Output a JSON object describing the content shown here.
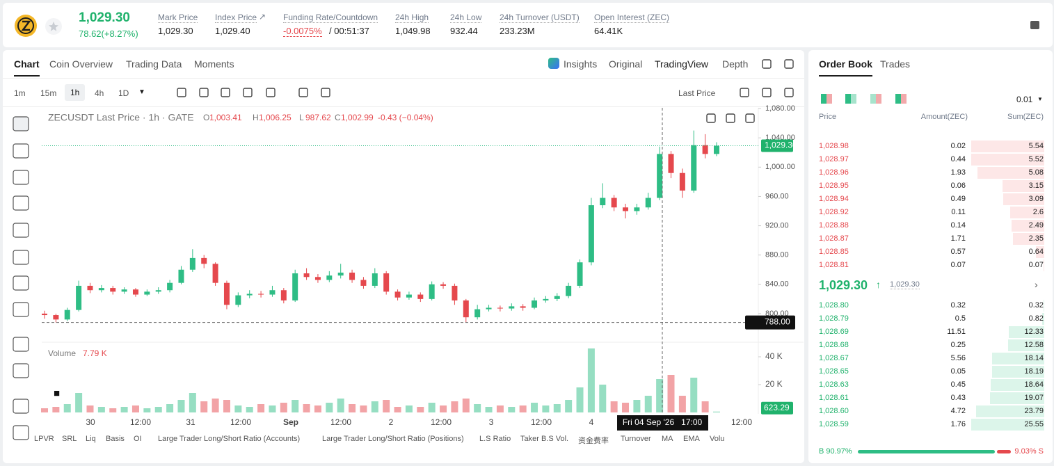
{
  "header": {
    "price": "1,029.30",
    "change": "78.62(+8.27%)",
    "stats": [
      {
        "label": "Mark Price",
        "value": "1,029.30"
      },
      {
        "label": "Index Price",
        "value": "1,029.40"
      },
      {
        "label": "Funding Rate/Countdown",
        "value": "-0.0075%",
        "extra": "/ 00:51:37"
      },
      {
        "label": "24h High",
        "value": "1,049.98"
      },
      {
        "label": "24h Low",
        "value": "932.44"
      },
      {
        "label": "24h Turnover (USDT)",
        "value": "233.23M"
      },
      {
        "label": "Open Interest (ZEC)",
        "value": "64.41K"
      }
    ]
  },
  "chart_tabs": [
    "Chart",
    "Coin Overview",
    "Trading Data",
    "Moments"
  ],
  "view_tabs": [
    "Insights",
    "Original",
    "TradingView",
    "Depth"
  ],
  "intervals": [
    "1m",
    "15m",
    "1h",
    "4h",
    "1D"
  ],
  "price_source": "Last Price",
  "chart": {
    "type": "candlestick",
    "title": "ZECUSDT Last Price · 1h · GATE",
    "ohlc_legend": [
      {
        "key": "O",
        "value": "1,003.41"
      },
      {
        "key": "H",
        "value": "1,006.25"
      },
      {
        "key": "L",
        "value": "987.62"
      },
      {
        "key": "C",
        "value": "1,002.99"
      }
    ],
    "change_legend": "-0.43 (−0.04%)",
    "open": [
      800,
      798,
      792,
      805,
      838,
      832,
      835,
      830,
      833,
      826,
      830,
      832,
      842,
      860,
      876,
      868,
      842,
      812,
      825,
      827,
      826,
      832,
      818,
      855,
      850,
      846,
      852,
      856,
      846,
      838,
      855,
      830,
      822,
      826,
      820,
      840,
      838,
      818,
      795,
      806,
      808,
      807,
      810,
      808,
      818,
      820,
      824,
      838,
      870,
      948,
      958,
      945,
      940,
      945,
      958,
      1018,
      992,
      968,
      1030,
      1018
    ],
    "high": [
      804,
      800,
      808,
      845,
      842,
      839,
      838,
      836,
      835,
      833,
      836,
      846,
      865,
      888,
      880,
      870,
      845,
      829,
      832,
      831,
      838,
      835,
      860,
      862,
      854,
      858,
      868,
      860,
      850,
      862,
      858,
      833,
      830,
      829,
      844,
      843,
      841,
      820,
      812,
      812,
      811,
      814,
      813,
      822,
      824,
      828,
      842,
      874,
      958,
      978,
      962,
      950,
      950,
      965,
      1028,
      1022,
      998,
      1050,
      1045,
      1034
    ],
    "low": [
      793,
      788,
      790,
      803,
      828,
      829,
      826,
      827,
      823,
      824,
      827,
      829,
      840,
      857,
      862,
      838,
      806,
      809,
      821,
      822,
      823,
      814,
      816,
      846,
      842,
      843,
      848,
      842,
      834,
      835,
      826,
      818,
      819,
      816,
      818,
      834,
      812,
      788,
      792,
      803,
      803,
      804,
      804,
      806,
      815,
      817,
      821,
      835,
      866,
      944,
      940,
      930,
      935,
      942,
      955,
      985,
      958,
      965,
      1012,
      1015
    ],
    "close": [
      798,
      792,
      805,
      838,
      832,
      835,
      830,
      833,
      826,
      830,
      832,
      842,
      860,
      876,
      868,
      842,
      812,
      825,
      827,
      826,
      832,
      818,
      855,
      850,
      846,
      852,
      856,
      846,
      838,
      855,
      830,
      822,
      826,
      820,
      840,
      838,
      818,
      795,
      806,
      808,
      807,
      810,
      808,
      818,
      820,
      824,
      838,
      870,
      948,
      958,
      945,
      940,
      945,
      958,
      1018,
      992,
      968,
      1030,
      1018,
      1029.3
    ],
    "volume": [
      3000,
      4000,
      6000,
      14000,
      5000,
      4000,
      3000,
      4000,
      5000,
      3000,
      4000,
      6000,
      9000,
      14000,
      8000,
      10000,
      9000,
      5000,
      4000,
      6000,
      5000,
      7000,
      9000,
      6000,
      5000,
      7000,
      10000,
      6000,
      5000,
      8000,
      9000,
      4000,
      5000,
      4000,
      7000,
      5000,
      8000,
      10000,
      6000,
      4000,
      5000,
      4000,
      5000,
      7000,
      5000,
      6000,
      9000,
      18000,
      46000,
      20000,
      8000,
      7000,
      9000,
      12000,
      24000,
      27000,
      12000,
      25000,
      8000,
      623.29
    ],
    "up_color": "#2ebd85",
    "down_color": "#e5484d",
    "ylim": [
      761,
      1081
    ],
    "yticks": [
      {
        "value": 1080,
        "label": "1,080.00"
      },
      {
        "value": 1040,
        "label": "1,040.00"
      },
      {
        "value": 1000,
        "label": "1,000.00"
      },
      {
        "value": 960,
        "label": "960.00"
      },
      {
        "value": 920,
        "label": "920.00"
      },
      {
        "value": 880,
        "label": "880.00"
      },
      {
        "value": 840,
        "label": "840.00"
      },
      {
        "value": 800,
        "label": "800.00"
      }
    ],
    "last_price": {
      "value": 1029.3,
      "label": "1,029.30"
    },
    "crosshair_price": {
      "value": 788,
      "label": "788.00"
    },
    "volume_title": "Volume",
    "volume_value": "7.79 K",
    "volume_ylim": [
      0,
      50000
    ],
    "volume_ticks": [
      {
        "value": 40000,
        "label": "40 K"
      },
      {
        "value": 20000,
        "label": "20 K"
      }
    ],
    "last_volume": {
      "value": 623.29,
      "label": "623.29"
    },
    "x_labels": [
      "30",
      "12:00",
      "31",
      "12:00",
      "Sep",
      "12:00",
      "2",
      "12:00",
      "3",
      "12:00",
      "4",
      "12:00"
    ],
    "crosshair_time": "Fri 04 Sep '26   17:00"
  },
  "indicators": [
    "LPVR",
    "SRL",
    "Liq",
    "Basis",
    "OI",
    "Large Trader Long/Short Ratio (Accounts)",
    "Large Trader Long/Short Ratio (Positions)",
    "L.S Ratio",
    "Taker B.S Vol.",
    "资金费率",
    "Turnover",
    "MA",
    "EMA",
    "Volu"
  ],
  "order_book": {
    "tabs": [
      "Order Book",
      "Trades"
    ],
    "precision": "0.01",
    "headers": [
      "Price",
      "Amount(ZEC)",
      "Sum(ZEC)"
    ],
    "asks": [
      [
        "1,028.98",
        0.02,
        5.54
      ],
      [
        "1,028.97",
        0.44,
        5.52
      ],
      [
        "1,028.96",
        1.93,
        5.08
      ],
      [
        "1,028.95",
        0.06,
        3.15
      ],
      [
        "1,028.94",
        0.49,
        3.09
      ],
      [
        "1,028.92",
        0.11,
        2.6
      ],
      [
        "1,028.88",
        0.14,
        2.49
      ],
      [
        "1,028.87",
        1.71,
        2.35
      ],
      [
        "1,028.85",
        0.57,
        0.64
      ],
      [
        "1,028.81",
        0.07,
        0.07
      ]
    ],
    "mid_price": "1,029.30",
    "mark_price": "1,029.30",
    "bids": [
      [
        "1,028.80",
        0.32,
        0.32
      ],
      [
        "1,028.79",
        0.5,
        0.82
      ],
      [
        "1,028.69",
        11.51,
        12.33
      ],
      [
        "1,028.68",
        0.25,
        12.58
      ],
      [
        "1,028.67",
        5.56,
        18.14
      ],
      [
        "1,028.65",
        0.05,
        18.19
      ],
      [
        "1,028.63",
        0.45,
        18.64
      ],
      [
        "1,028.61",
        0.43,
        19.07
      ],
      [
        "1,028.60",
        4.72,
        23.79
      ],
      [
        "1,028.59",
        1.76,
        25.55
      ]
    ],
    "buy_ratio": {
      "value": 90.97,
      "label": "B 90.97%"
    },
    "sell_ratio": {
      "value": 9.03,
      "label": "9.03% S"
    }
  }
}
